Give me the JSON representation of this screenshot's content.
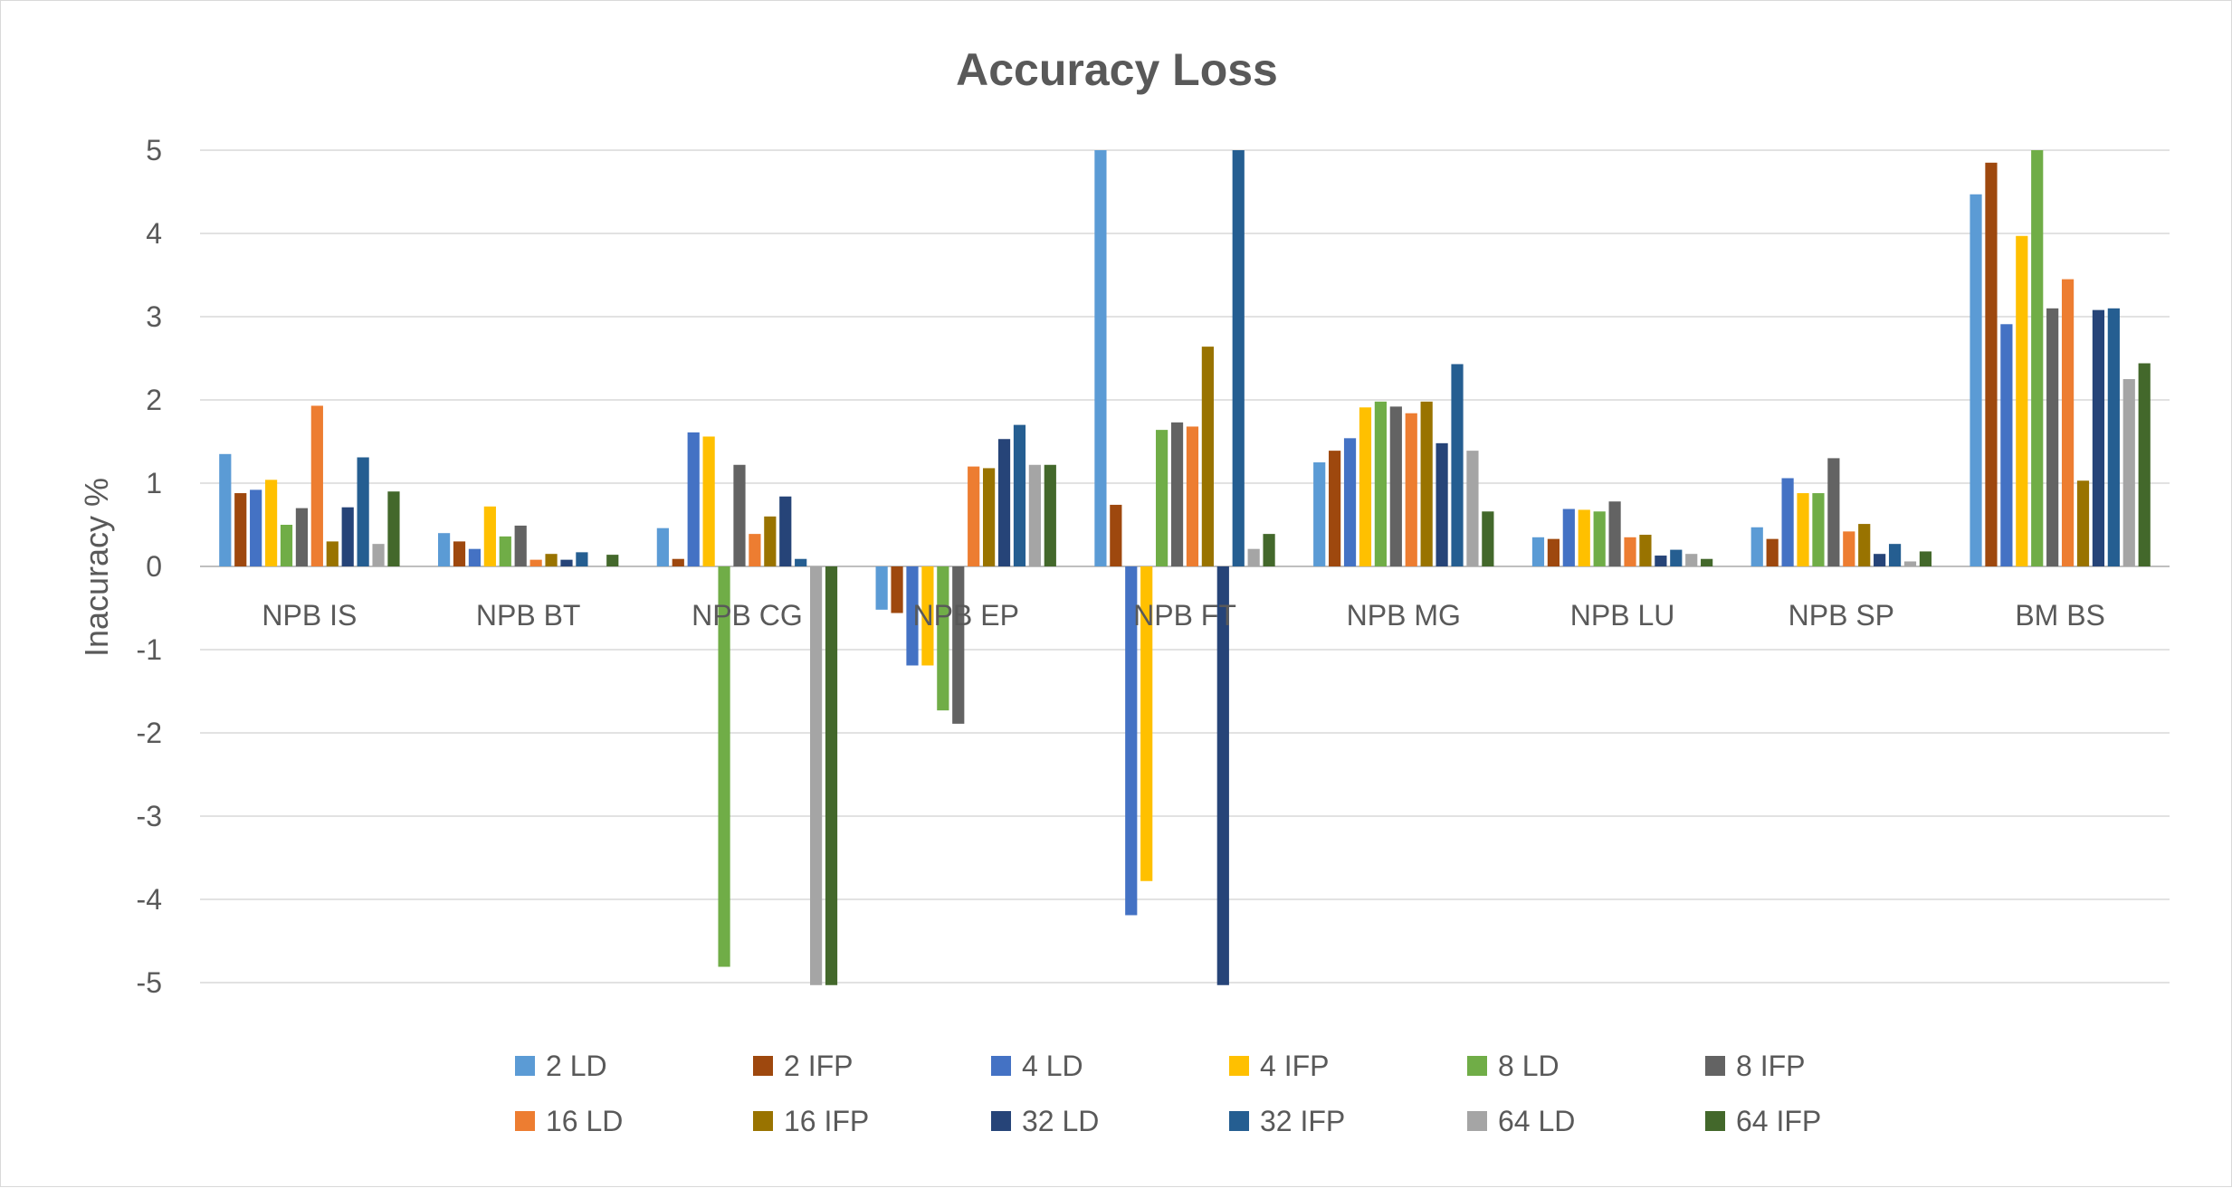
{
  "chart_data": {
    "type": "bar",
    "title": "Accuracy Loss",
    "xlabel": "",
    "ylabel": "Inacuracy %",
    "ylim": [
      -5,
      5
    ],
    "yticks": [
      5,
      4,
      3,
      2,
      1,
      0,
      -1,
      -2,
      -3,
      -4,
      -5
    ],
    "grid": true,
    "legend_position": "bottom",
    "categories": [
      "NPB IS",
      "NPB BT",
      "NPB CG",
      "NPB EP",
      "NPB FT",
      "NPB MG",
      "NPB LU",
      "NPB SP",
      "BM BS"
    ],
    "series": [
      {
        "name": "2 LD",
        "color": "#5B9BD5",
        "values": [
          1.35,
          0.4,
          0.46,
          -0.52,
          5.0,
          1.25,
          0.35,
          0.47,
          4.47
        ]
      },
      {
        "name": "2 IFP",
        "color": "#9E480E",
        "values": [
          0.88,
          0.3,
          0.09,
          -0.56,
          0.74,
          1.39,
          0.33,
          0.33,
          4.85
        ]
      },
      {
        "name": "4 LD",
        "color": "#4472C4",
        "values": [
          0.92,
          0.21,
          1.61,
          -1.19,
          -4.19,
          1.54,
          0.69,
          1.06,
          2.91
        ]
      },
      {
        "name": "4 IFP",
        "color": "#FFC000",
        "values": [
          1.04,
          0.72,
          1.56,
          -1.19,
          -3.78,
          1.91,
          0.68,
          0.88,
          3.97
        ]
      },
      {
        "name": "8 LD",
        "color": "#70AD47",
        "values": [
          0.5,
          0.36,
          -4.81,
          -1.73,
          1.64,
          1.98,
          0.66,
          0.88,
          5.0
        ]
      },
      {
        "name": "8 IFP",
        "color": "#636363",
        "values": [
          0.7,
          0.49,
          1.22,
          -1.89,
          1.73,
          1.92,
          0.78,
          1.3,
          3.1
        ]
      },
      {
        "name": "16 LD",
        "color": "#ED7D31",
        "values": [
          1.93,
          0.08,
          0.39,
          1.2,
          1.68,
          1.84,
          0.35,
          0.42,
          3.45
        ]
      },
      {
        "name": "16 IFP",
        "color": "#997300",
        "values": [
          0.3,
          0.15,
          0.6,
          1.18,
          2.64,
          1.98,
          0.38,
          0.51,
          1.03
        ]
      },
      {
        "name": "32 LD",
        "color": "#264478",
        "values": [
          0.71,
          0.08,
          0.84,
          1.53,
          -5.03,
          1.48,
          0.13,
          0.15,
          3.08
        ]
      },
      {
        "name": "32 IFP",
        "color": "#255E91",
        "values": [
          1.31,
          0.17,
          0.09,
          1.7,
          5.0,
          2.43,
          0.2,
          0.27,
          3.1
        ]
      },
      {
        "name": "64 LD",
        "color": "#A5A5A5",
        "values": [
          0.27,
          0.0,
          -5.03,
          1.22,
          0.21,
          1.39,
          0.15,
          0.06,
          2.25
        ]
      },
      {
        "name": "64 IFP",
        "color": "#43682B",
        "values": [
          0.9,
          0.14,
          -5.03,
          1.22,
          0.39,
          0.66,
          0.09,
          0.18,
          2.44
        ]
      }
    ]
  }
}
